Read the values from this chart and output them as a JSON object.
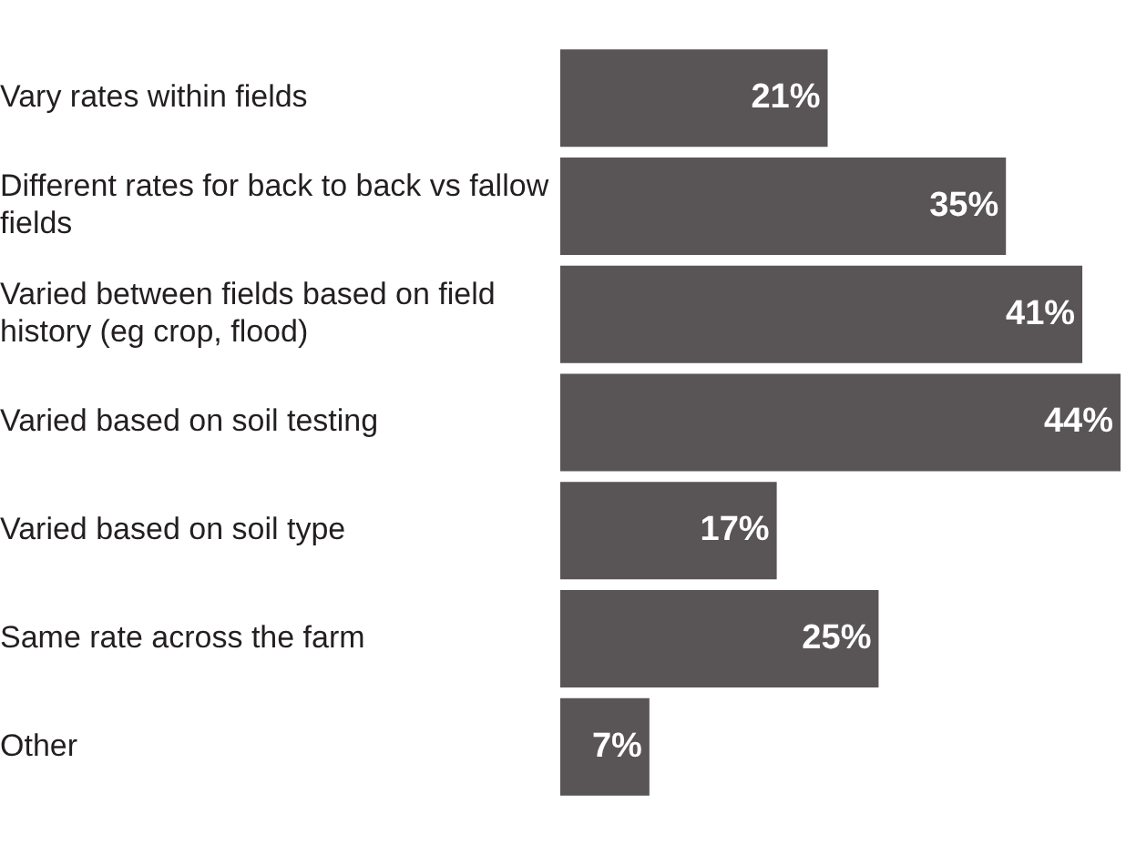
{
  "chart_data": {
    "type": "bar",
    "orientation": "horizontal",
    "categories": [
      "Vary rates within fields",
      "Different rates for back to back vs fallow fields",
      "Varied between fields based on field history (eg crop, flood)",
      "Varied based on soil testing",
      "Varied based on soil type",
      "Same rate across the farm",
      "Other"
    ],
    "values": [
      21,
      35,
      41,
      44,
      17,
      25,
      7
    ],
    "value_labels": [
      "21%",
      "35%",
      "41%",
      "44%",
      "17%",
      "25%",
      "7%"
    ],
    "color": "#595455",
    "grid": false,
    "legend": false
  }
}
